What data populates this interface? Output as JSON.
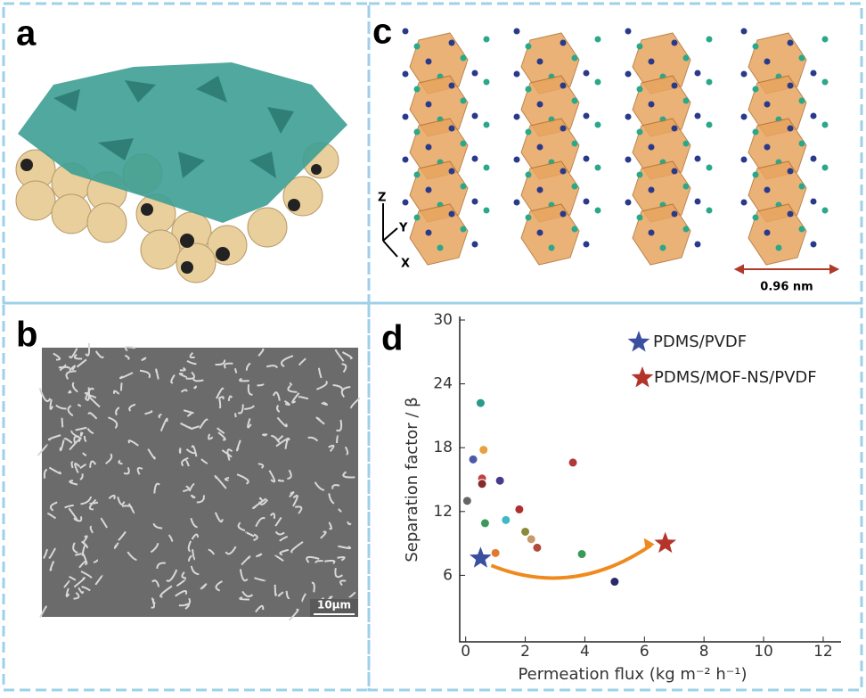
{
  "panels": {
    "a": {
      "label": "a"
    },
    "b": {
      "label": "b",
      "scale_bar": "10μm"
    },
    "c": {
      "label": "c",
      "scale_bar": "0.96 nm",
      "axes": [
        "Z",
        "Y",
        "X"
      ]
    },
    "d": {
      "label": "d"
    }
  },
  "chart_data": {
    "type": "scatter",
    "x_label": "Permeation flux (kg m⁻² h⁻¹)",
    "y_label": "Separation factor / β",
    "xlim": [
      -0.2,
      12.6
    ],
    "ylim": [
      0,
      30
    ],
    "xticks": [
      0,
      2,
      4,
      6,
      8,
      10,
      12
    ],
    "yticks": [
      6,
      12,
      18,
      24,
      30
    ],
    "series": [
      {
        "name": "PDMS/PVDF",
        "color": "#3a4fa0",
        "marker": "star",
        "x": [
          0.5
        ],
        "values": [
          7.6
        ]
      },
      {
        "name": "PDMS/MOF-NS/PVDF",
        "color": "#b5342a",
        "marker": "star",
        "x": [
          6.7
        ],
        "values": [
          9.0
        ]
      },
      {
        "marker": "circle",
        "colors": [
          "#2a9a8a",
          "#666666",
          "#4a5aa8",
          "#e8a040",
          "#c04040",
          "#8a2a2a",
          "#4a3a8a",
          "#3a9a5a",
          "#40b8c8",
          "#b03030",
          "#e07a30",
          "#8a8a3a",
          "#c89a6a",
          "#b04a3a",
          "#b03a3a",
          "#3a9a5a",
          "#2a2a6a"
        ],
        "x": [
          0.5,
          0.05,
          0.25,
          0.6,
          0.55,
          0.55,
          1.15,
          0.65,
          1.35,
          1.8,
          1.0,
          2.0,
          2.2,
          2.4,
          3.6,
          3.9,
          5.0
        ],
        "values": [
          22.2,
          13.0,
          16.9,
          17.8,
          15.1,
          14.6,
          14.9,
          10.9,
          11.2,
          12.2,
          8.1,
          10.1,
          9.4,
          8.6,
          16.6,
          8.0,
          5.4
        ]
      }
    ]
  }
}
